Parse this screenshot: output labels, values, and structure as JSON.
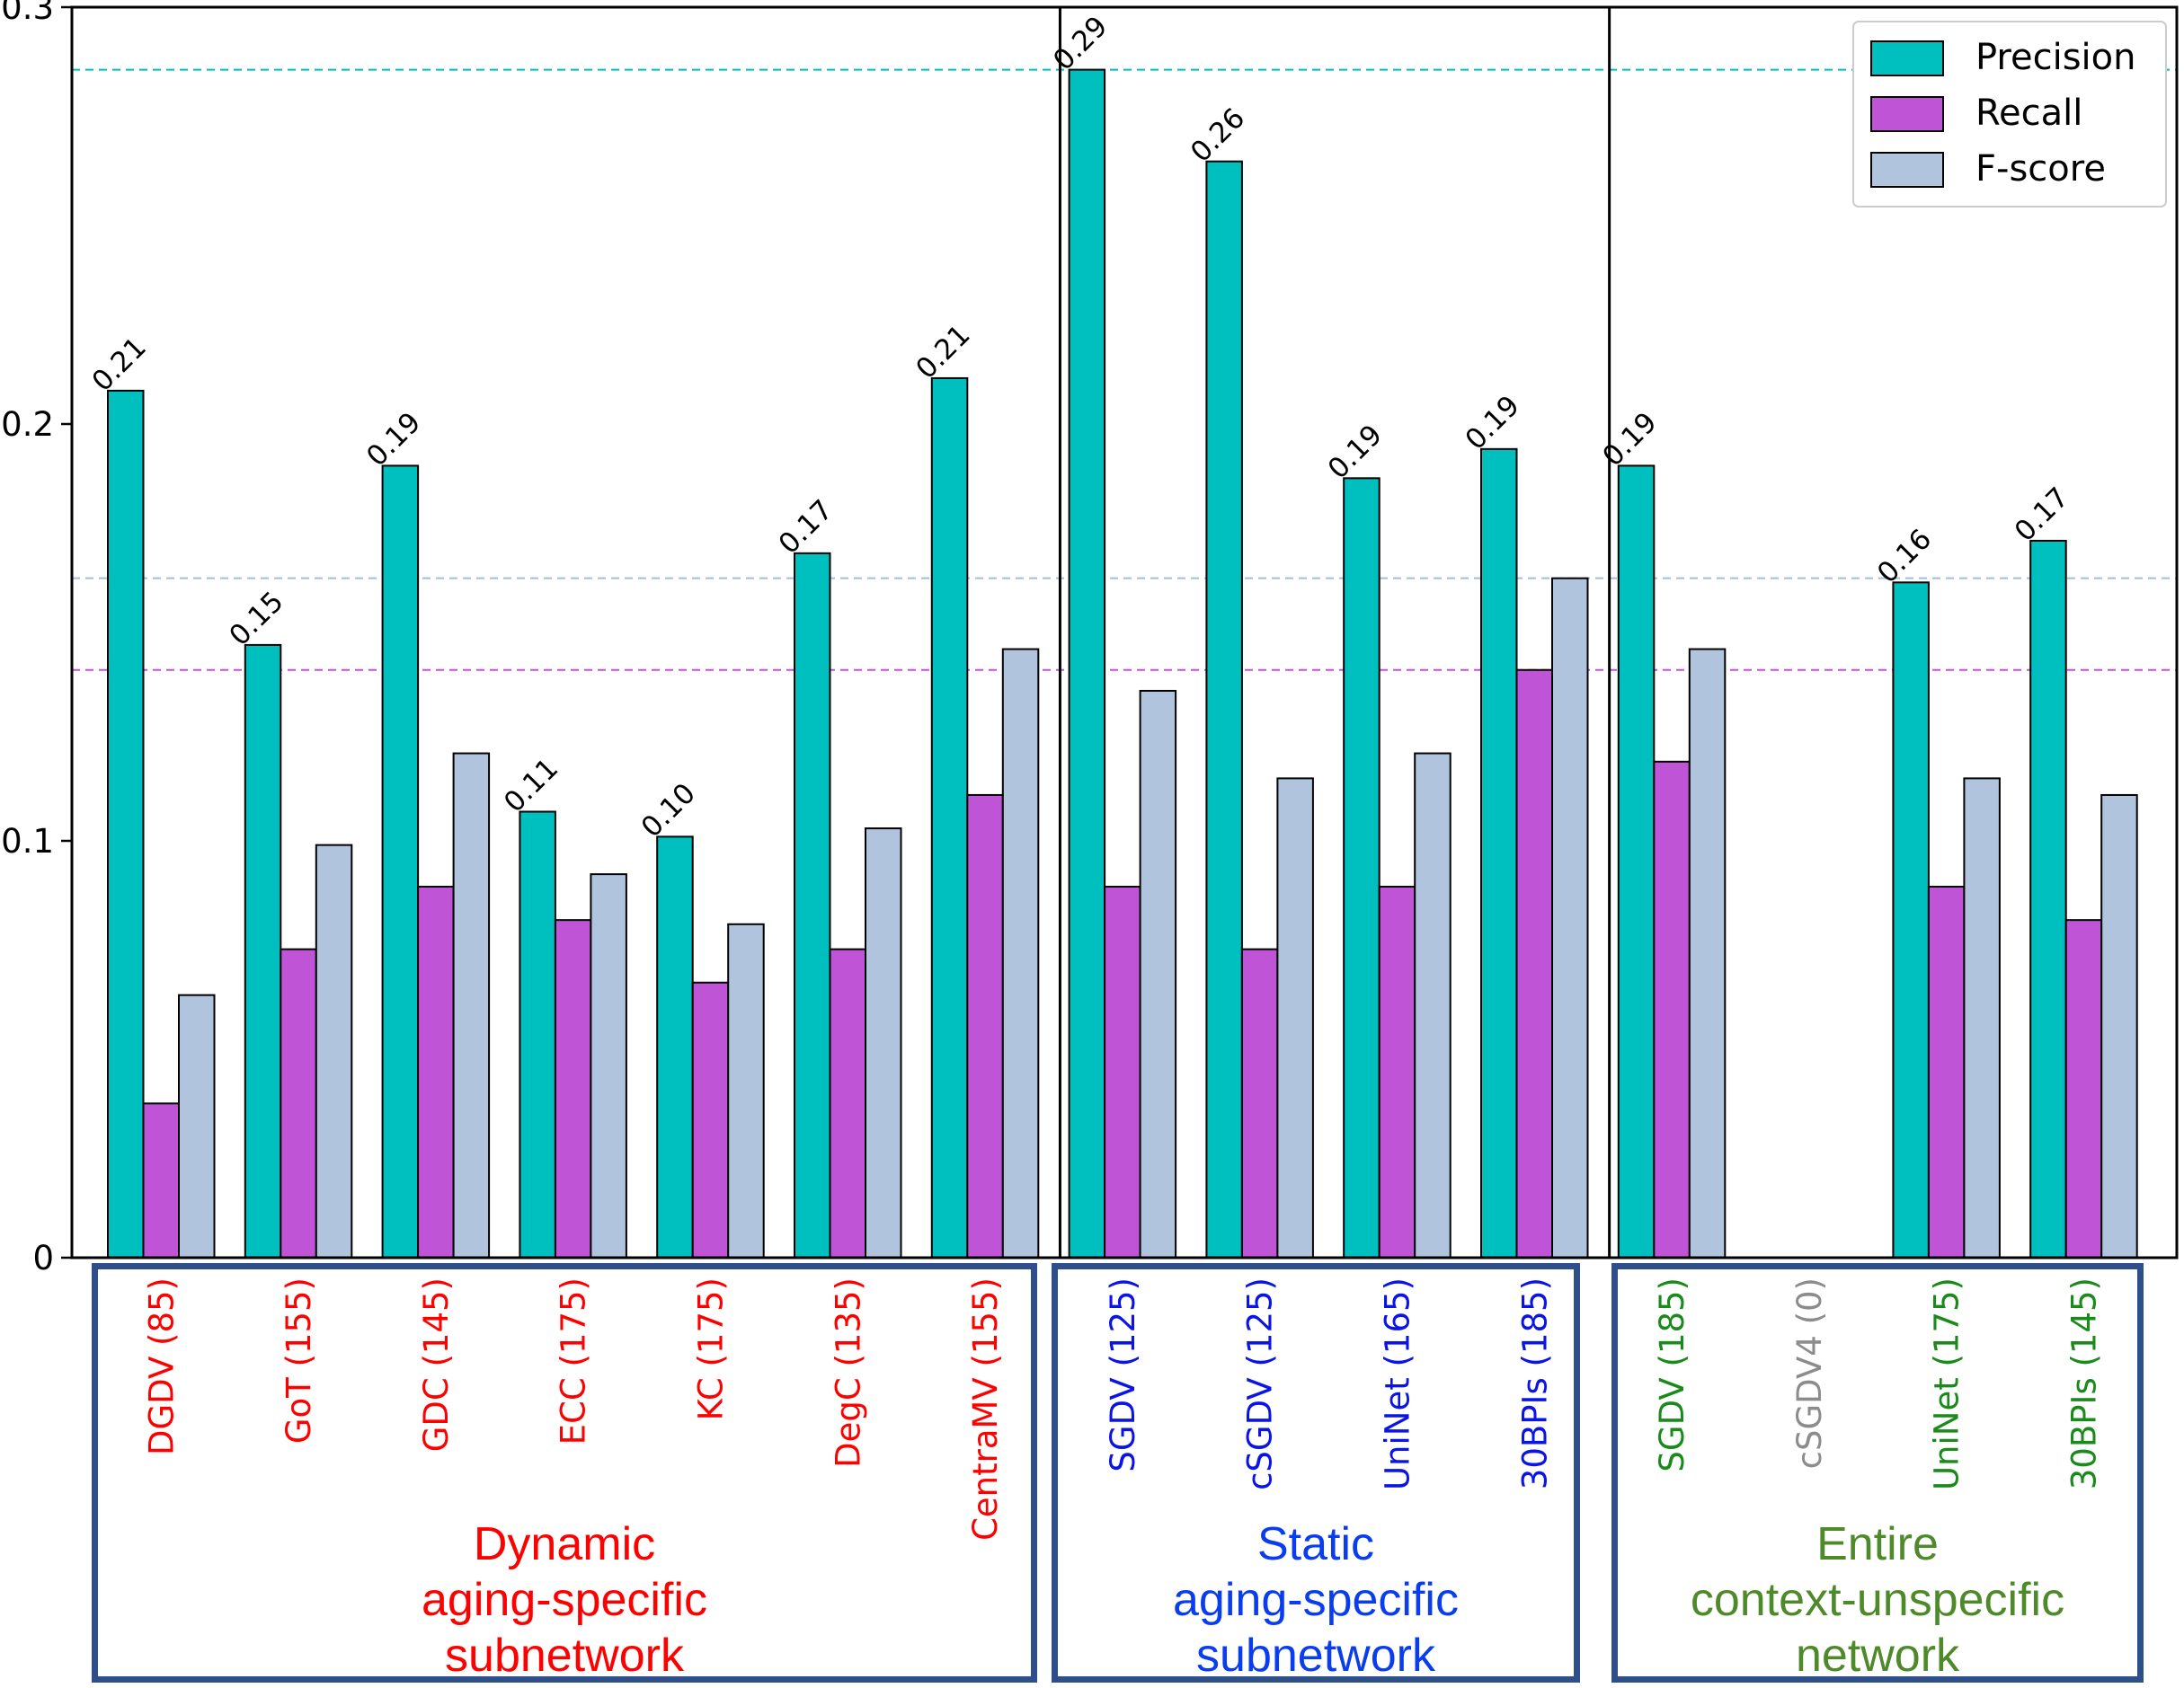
{
  "chart_data": {
    "type": "bar",
    "ylim": [
      0,
      0.3
    ],
    "yticks": [
      0,
      0.1,
      0.2,
      0.3
    ],
    "ytick_labels": [
      "0",
      "0.1",
      "0.2",
      "0.3"
    ],
    "grid": false,
    "legend_position": "top-right",
    "series": [
      {
        "name": "Precision",
        "color": "#00bfbf",
        "values": [
          0.208,
          0.147,
          0.19,
          0.107,
          0.101,
          0.169,
          0.211,
          0.285,
          0.263,
          0.187,
          0.194,
          0.19,
          0,
          0.162,
          0.172
        ]
      },
      {
        "name": "Recall",
        "color": "#bf55d6",
        "values": [
          0.037,
          0.074,
          0.089,
          0.081,
          0.066,
          0.074,
          0.111,
          0.089,
          0.074,
          0.089,
          0.141,
          0.119,
          0,
          0.089,
          0.081
        ]
      },
      {
        "name": "F-score",
        "color": "#b0c4de",
        "values": [
          0.063,
          0.099,
          0.121,
          0.092,
          0.08,
          0.103,
          0.146,
          0.136,
          0.115,
          0.121,
          0.163,
          0.146,
          0,
          0.115,
          0.111
        ]
      }
    ],
    "precision_labels": [
      "0.21",
      "0.15",
      "0.19",
      "0.11",
      "0.10",
      "0.17",
      "0.21",
      "0.29",
      "0.26",
      "0.19",
      "0.19",
      "0.19",
      "",
      "0.16",
      "0.17"
    ],
    "categories": [
      "DGDV (85)",
      "GoT (155)",
      "GDC (145)",
      "ECC (175)",
      "KC (175)",
      "DegC (135)",
      "CentraMV (155)",
      "SGDV (125)",
      "cSGDV (125)",
      "UniNet (165)",
      "30BPIs (185)",
      "SGDV (185)",
      "cSGDV4 (0)",
      "UniNet (175)",
      "30BPIs (145)"
    ],
    "category_colors": [
      "#ff0000",
      "#ff0000",
      "#ff0000",
      "#ff0000",
      "#ff0000",
      "#ff0000",
      "#ff0000",
      "#0a14e6",
      "#0a14e6",
      "#0a14e6",
      "#0a14e6",
      "#1a8a1a",
      "#8c8c8c",
      "#1a8a1a",
      "#1a8a1a"
    ],
    "reference_lines": [
      {
        "series": "Precision",
        "value": 0.285,
        "color": "#00bfbf"
      },
      {
        "series": "F-score",
        "value": 0.163,
        "color": "#9ec0dc"
      },
      {
        "series": "Recall",
        "value": 0.141,
        "color": "#bf55d6"
      }
    ],
    "groups": [
      {
        "title_lines": [
          "Dynamic",
          "aging-specific",
          "subnetwork"
        ],
        "color": "#ff0000",
        "first": 0,
        "last": 6
      },
      {
        "title_lines": [
          "Static",
          "aging-specific",
          "subnetwork"
        ],
        "color": "#0a3cf0",
        "first": 7,
        "last": 10
      },
      {
        "title_lines": [
          "Entire",
          "context-unspecific",
          "network"
        ],
        "color": "#4e8a2a",
        "first": 11,
        "last": 14
      }
    ]
  }
}
